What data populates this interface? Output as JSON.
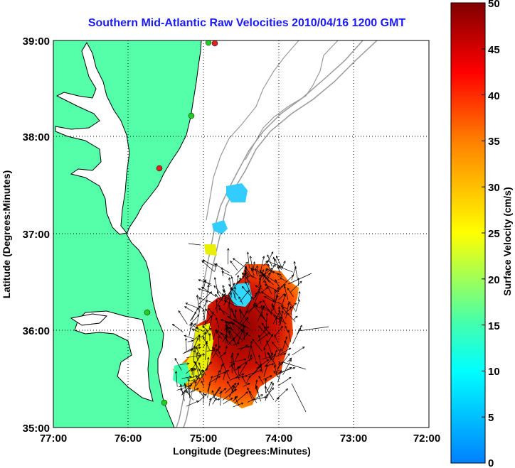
{
  "title": "Southern Mid-Atlantic Raw Velocities 2010/04/16 1200 GMT",
  "x_axis": {
    "label": "Longitude (Degrees:Minutes)",
    "ticks": [
      "77:00",
      "76:00",
      "75:00",
      "74:00",
      "73:00",
      "72:00"
    ]
  },
  "y_axis": {
    "label": "Latitude (Degrees:Minutes)",
    "ticks": [
      "39:00",
      "38:00",
      "37:00",
      "36:00",
      "35:00"
    ]
  },
  "colorbar": {
    "label": "Surface Velocity (cm/s)",
    "ticks": [
      "50",
      "45",
      "40",
      "35",
      "30",
      "25",
      "20",
      "15",
      "10",
      "5",
      "0"
    ],
    "min": 0,
    "max": 50
  },
  "colors": {
    "land": "#55ffaa",
    "coast": "#000000",
    "bathymetry": "#999999",
    "title": "#1a1aff",
    "station_green": "#22cc22",
    "station_red": "#dd2222"
  },
  "map_extent": {
    "lon_west": -77,
    "lon_east": -72,
    "lat_south": 35,
    "lat_north": 39
  },
  "grid": true
}
